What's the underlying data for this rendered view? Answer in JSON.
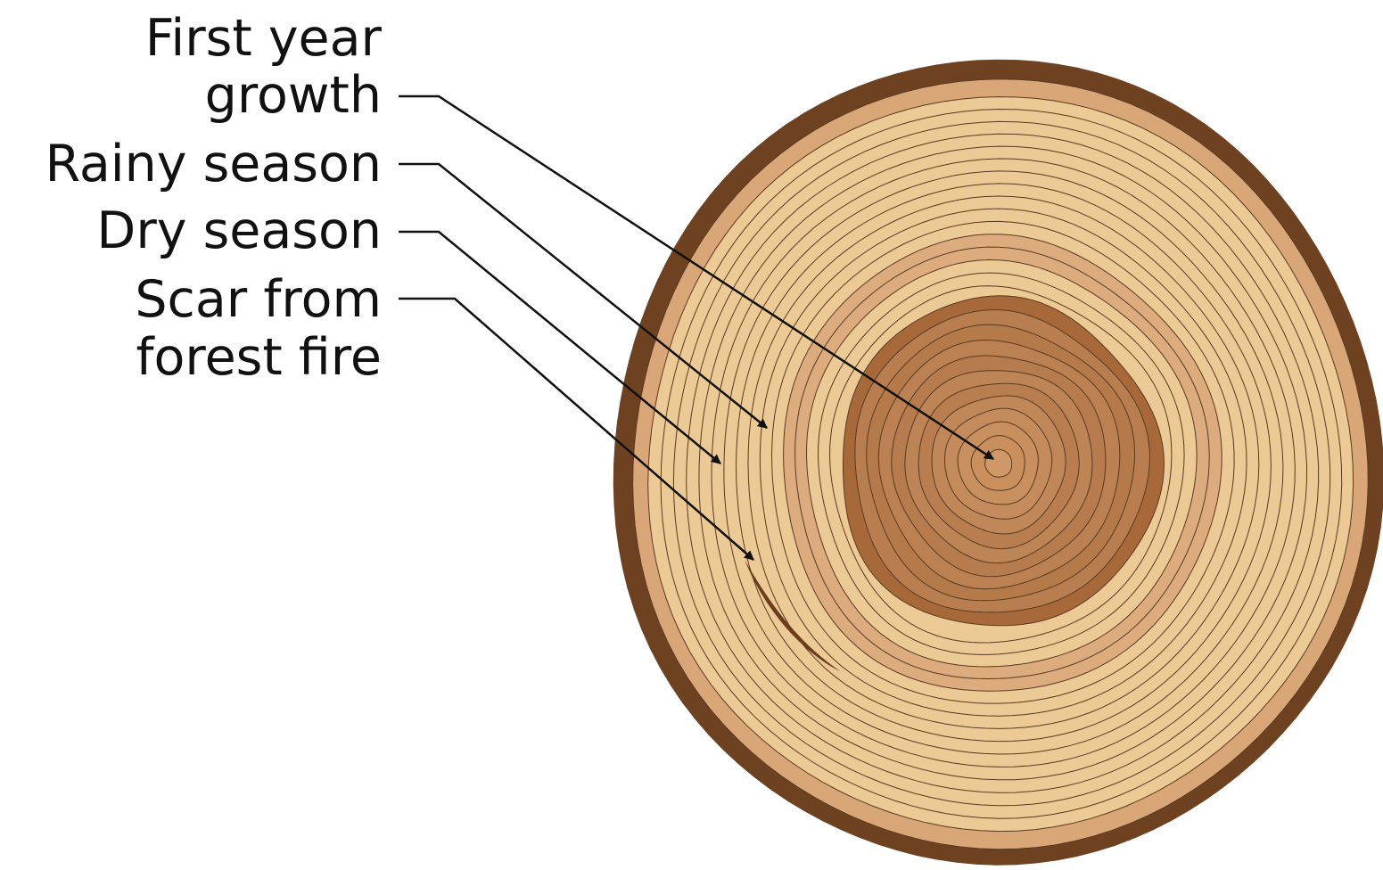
{
  "labels": [
    {
      "lines": [
        "First year",
        "growth"
      ]
    },
    {
      "lines": [
        "Rainy season"
      ]
    },
    {
      "lines": [
        "Dry season"
      ]
    },
    {
      "lines": [
        "Scar from",
        "forest fire"
      ]
    }
  ]
}
